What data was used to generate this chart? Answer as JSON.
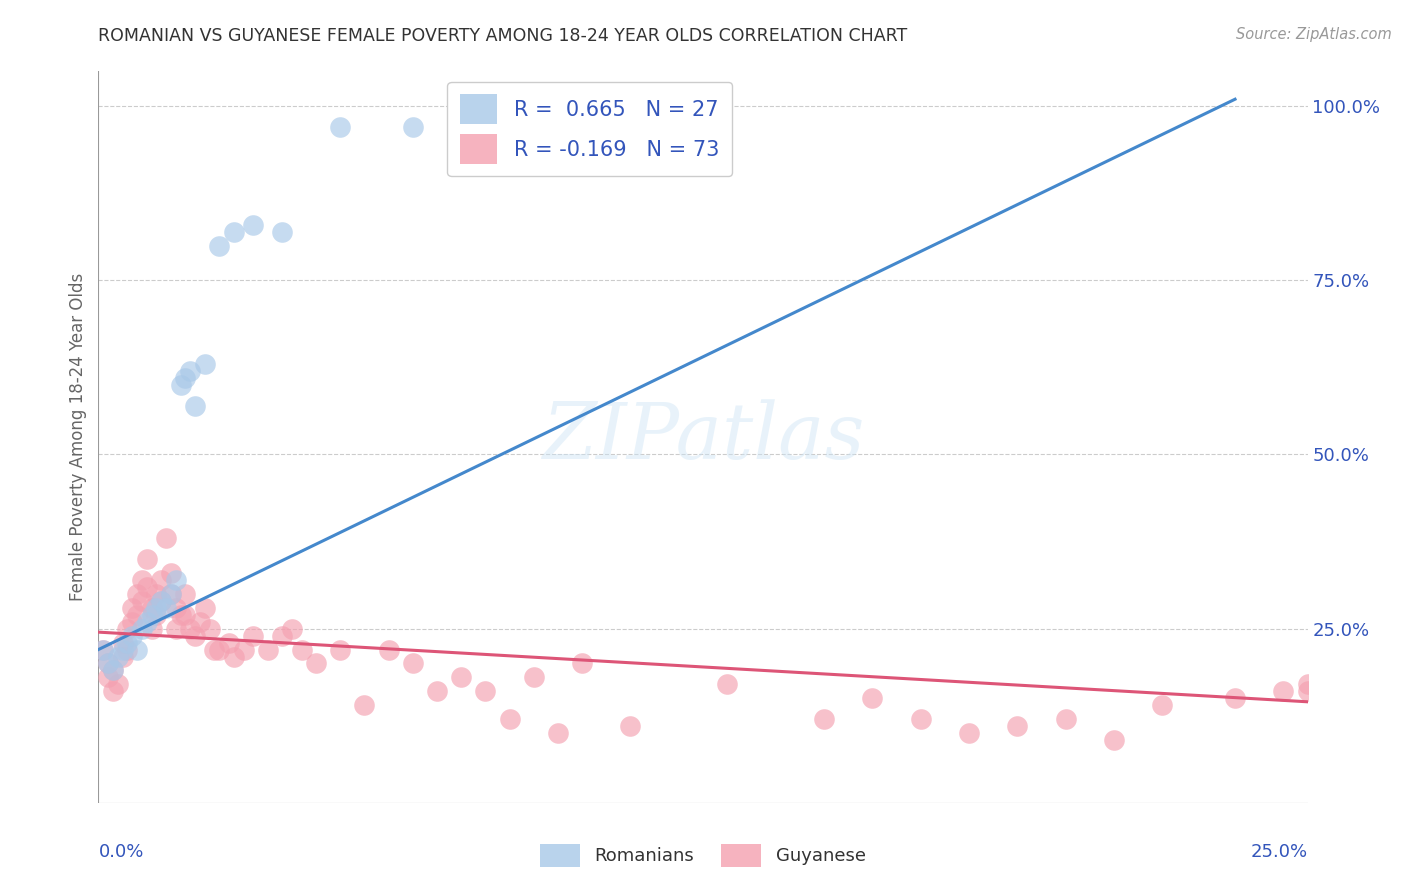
{
  "title": "ROMANIAN VS GUYANESE FEMALE POVERTY AMONG 18-24 YEAR OLDS CORRELATION CHART",
  "source": "Source: ZipAtlas.com",
  "ylabel": "Female Poverty Among 18-24 Year Olds",
  "background_color": "#ffffff",
  "watermark": "ZIPatlas",
  "blue_color": "#a8c8e8",
  "pink_color": "#f4a0b0",
  "blue_line_color": "#4488cc",
  "pink_line_color": "#dd5577",
  "legend_text_color": "#3355bb",
  "title_color": "#333333",
  "axis_label_color": "#3355bb",
  "grid_color": "#cccccc",
  "xlim": [
    0.0,
    0.25
  ],
  "ylim": [
    0.0,
    1.05
  ],
  "yticks": [
    0.25,
    0.5,
    0.75,
    1.0
  ],
  "ytick_labels": [
    "25.0%",
    "50.0%",
    "75.0%",
    "100.0%"
  ],
  "rom_line_x": [
    0.0,
    0.235
  ],
  "rom_line_y": [
    0.22,
    1.01
  ],
  "guy_line_x": [
    0.0,
    0.25
  ],
  "guy_line_y": [
    0.245,
    0.145
  ],
  "romanians_x": [
    0.001,
    0.002,
    0.003,
    0.004,
    0.005,
    0.006,
    0.007,
    0.008,
    0.009,
    0.01,
    0.011,
    0.012,
    0.013,
    0.014,
    0.015,
    0.016,
    0.017,
    0.018,
    0.019,
    0.02,
    0.022,
    0.025,
    0.028,
    0.032,
    0.038,
    0.05,
    0.065
  ],
  "romanians_y": [
    0.22,
    0.2,
    0.19,
    0.21,
    0.22,
    0.23,
    0.24,
    0.22,
    0.25,
    0.26,
    0.27,
    0.28,
    0.29,
    0.28,
    0.3,
    0.32,
    0.6,
    0.61,
    0.62,
    0.57,
    0.63,
    0.8,
    0.82,
    0.83,
    0.82,
    0.97,
    0.97
  ],
  "guyanese_x": [
    0.001,
    0.002,
    0.002,
    0.003,
    0.003,
    0.004,
    0.005,
    0.005,
    0.006,
    0.006,
    0.007,
    0.007,
    0.008,
    0.008,
    0.009,
    0.009,
    0.01,
    0.01,
    0.011,
    0.011,
    0.012,
    0.012,
    0.013,
    0.013,
    0.014,
    0.015,
    0.015,
    0.016,
    0.016,
    0.017,
    0.018,
    0.018,
    0.019,
    0.02,
    0.021,
    0.022,
    0.023,
    0.024,
    0.025,
    0.027,
    0.028,
    0.03,
    0.032,
    0.035,
    0.038,
    0.04,
    0.042,
    0.045,
    0.05,
    0.055,
    0.06,
    0.065,
    0.07,
    0.075,
    0.08,
    0.085,
    0.09,
    0.095,
    0.1,
    0.11,
    0.13,
    0.15,
    0.16,
    0.17,
    0.18,
    0.19,
    0.2,
    0.21,
    0.22,
    0.235,
    0.245,
    0.25,
    0.25
  ],
  "guyanese_y": [
    0.22,
    0.2,
    0.18,
    0.19,
    0.16,
    0.17,
    0.23,
    0.21,
    0.25,
    0.22,
    0.28,
    0.26,
    0.3,
    0.27,
    0.32,
    0.29,
    0.35,
    0.31,
    0.28,
    0.25,
    0.3,
    0.27,
    0.32,
    0.29,
    0.38,
    0.33,
    0.3,
    0.28,
    0.25,
    0.27,
    0.3,
    0.27,
    0.25,
    0.24,
    0.26,
    0.28,
    0.25,
    0.22,
    0.22,
    0.23,
    0.21,
    0.22,
    0.24,
    0.22,
    0.24,
    0.25,
    0.22,
    0.2,
    0.22,
    0.14,
    0.22,
    0.2,
    0.16,
    0.18,
    0.16,
    0.12,
    0.18,
    0.1,
    0.2,
    0.11,
    0.17,
    0.12,
    0.15,
    0.12,
    0.1,
    0.11,
    0.12,
    0.09,
    0.14,
    0.15,
    0.16,
    0.17,
    0.16
  ]
}
